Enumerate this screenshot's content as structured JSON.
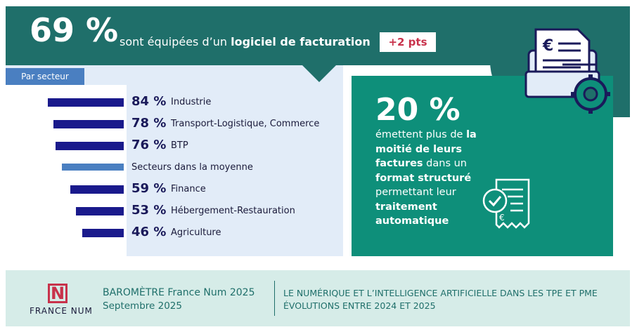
{
  "header": {
    "percent": "69 %",
    "text_prefix": "sont équipées d’un ",
    "text_bold": "logiciel de facturation",
    "delta": "+2 pts"
  },
  "sector_tag": "Par secteur",
  "chart_data": {
    "type": "bar",
    "orientation": "horizontal",
    "unit": "%",
    "categories": [
      "Industrie",
      "Transport-Logistique, Commerce",
      "BTP",
      "Secteurs dans la moyenne",
      "Finance",
      "Hébergement-Restauration",
      "Agriculture"
    ],
    "values": [
      84,
      78,
      76,
      null,
      59,
      53,
      46
    ],
    "labels": [
      "84 %",
      "78 %",
      "76 %",
      "",
      "59 %",
      "53 %",
      "46 %"
    ],
    "highlight_colors": {
      "bar": "#1a1a8c",
      "average_marker": "#4a7fc1"
    },
    "average_marker": {
      "label": "Secteurs dans la moyenne",
      "value": 69
    }
  },
  "side_stat": {
    "percent": "20 %",
    "lines": [
      {
        "t": "émettent plus de ",
        "b": false
      },
      {
        "t": "la moitié de leurs factures",
        "b": true
      },
      {
        "t": " dans un ",
        "b": false
      },
      {
        "t": "format structuré",
        "b": true
      },
      {
        "t": " permettant leur ",
        "b": false
      },
      {
        "t": "traitement automatique",
        "b": true
      }
    ]
  },
  "icons": {
    "invoice": "invoice-gear-icon",
    "document": "checked-invoice-icon"
  },
  "footer": {
    "logo_letter": "N",
    "logo_caption": "FRANCE NUM",
    "title": "BAROMÈTRE France Num 2025",
    "date": "Septembre 2025",
    "line1": "LE NUMÉRIQUE ET L’INTELLIGENCE ARTIFICIELLE DANS LES TPE ET PME",
    "line2": "ÉVOLUTIONS ENTRE 2024 ET 2025"
  },
  "colors": {
    "teal_dark": "#1f6f6a",
    "teal": "#0e8f7a",
    "red": "#c8324b",
    "navy": "#1a1a8c",
    "blue": "#4a7fc1",
    "panel": "#e2ecf8",
    "footer": "#d6ece8"
  }
}
